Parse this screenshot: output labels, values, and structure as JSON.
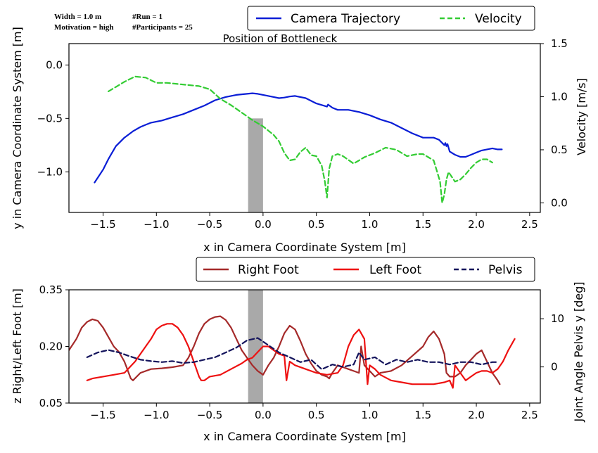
{
  "info": {
    "line1_left": "Width = 1.0 m",
    "line1_right": "#Run = 1",
    "line2_left": "Motivation = high",
    "line2_right": "#Participants = 25"
  },
  "colors": {
    "camera": "#0a1ed6",
    "velocity": "#33cc33",
    "right_foot": "#a52a2a",
    "left_foot": "#ee1111",
    "pelvis": "#14145c",
    "bottleneck": "#a9a9a9"
  },
  "chart_data": [
    {
      "type": "line",
      "title": "Position of Bottleneck",
      "xlabel": "x in Camera Coordinate System [m]",
      "ylabel": "y in Camera Coordinate System [m]",
      "y2label": "Velocity [m/s]",
      "xlim": [
        -1.82,
        2.6
      ],
      "ylim": [
        -1.38,
        0.2
      ],
      "y2lim": [
        -0.09,
        1.5
      ],
      "xticks": [
        "−1.5",
        "−1.0",
        "−0.5",
        "0.0",
        "0.5",
        "1.0",
        "1.5",
        "2.0",
        "2.5"
      ],
      "xtick_values": [
        -1.5,
        -1.0,
        -0.5,
        0.0,
        0.5,
        1.0,
        1.5,
        2.0,
        2.5
      ],
      "yticks": [
        "0.0",
        "−0.5",
        "−1.0"
      ],
      "ytick_values": [
        0.0,
        -0.5,
        -1.0
      ],
      "y2ticks": [
        "1.5",
        "1.0",
        "0.5",
        "0.0"
      ],
      "y2tick_values": [
        1.5,
        1.0,
        0.5,
        0.0
      ],
      "bottleneck": {
        "x0": -0.14,
        "x1": 0.0,
        "top": -0.5
      },
      "legend": "top-right",
      "series": [
        {
          "name": "Camera Trajectory",
          "axis": "left",
          "style": "solid",
          "x": [
            -1.58,
            -1.5,
            -1.45,
            -1.38,
            -1.3,
            -1.22,
            -1.15,
            -1.1,
            -1.05,
            -0.95,
            -0.85,
            -0.75,
            -0.65,
            -0.55,
            -0.45,
            -0.35,
            -0.25,
            -0.15,
            -0.1,
            -0.05,
            0.0,
            0.05,
            0.1,
            0.15,
            0.2,
            0.25,
            0.3,
            0.4,
            0.5,
            0.6,
            0.61,
            0.65,
            0.7,
            0.8,
            0.9,
            1.0,
            1.1,
            1.2,
            1.3,
            1.4,
            1.5,
            1.6,
            1.65,
            1.7,
            1.71,
            1.72,
            1.73,
            1.75,
            1.8,
            1.85,
            1.9,
            1.95,
            2.0,
            2.05,
            2.1,
            2.15,
            2.2,
            2.24
          ],
          "y": [
            -1.1,
            -0.98,
            -0.88,
            -0.76,
            -0.68,
            -0.62,
            -0.58,
            -0.56,
            -0.54,
            -0.52,
            -0.49,
            -0.46,
            -0.42,
            -0.38,
            -0.33,
            -0.3,
            -0.28,
            -0.27,
            -0.265,
            -0.27,
            -0.28,
            -0.29,
            -0.3,
            -0.31,
            -0.305,
            -0.295,
            -0.29,
            -0.31,
            -0.36,
            -0.39,
            -0.37,
            -0.4,
            -0.42,
            -0.42,
            -0.44,
            -0.47,
            -0.51,
            -0.54,
            -0.59,
            -0.64,
            -0.68,
            -0.68,
            -0.7,
            -0.75,
            -0.73,
            -0.76,
            -0.74,
            -0.81,
            -0.84,
            -0.86,
            -0.86,
            -0.84,
            -0.82,
            -0.8,
            -0.79,
            -0.78,
            -0.79,
            -0.79
          ]
        },
        {
          "name": "Velocity",
          "axis": "right",
          "style": "dashed",
          "x": [
            -1.45,
            -1.4,
            -1.3,
            -1.2,
            -1.1,
            -1.0,
            -0.9,
            -0.8,
            -0.7,
            -0.6,
            -0.5,
            -0.4,
            -0.3,
            -0.2,
            -0.1,
            0.0,
            0.1,
            0.15,
            0.2,
            0.25,
            0.3,
            0.35,
            0.4,
            0.45,
            0.5,
            0.55,
            0.58,
            0.6,
            0.62,
            0.65,
            0.7,
            0.75,
            0.85,
            0.95,
            1.05,
            1.15,
            1.25,
            1.35,
            1.45,
            1.5,
            1.55,
            1.6,
            1.63,
            1.66,
            1.68,
            1.7,
            1.72,
            1.74,
            1.8,
            1.85,
            1.9,
            1.95,
            2.0,
            2.05,
            2.1,
            2.15
          ],
          "y": [
            1.05,
            1.08,
            1.14,
            1.19,
            1.18,
            1.13,
            1.13,
            1.12,
            1.11,
            1.1,
            1.07,
            0.98,
            0.92,
            0.85,
            0.78,
            0.72,
            0.64,
            0.58,
            0.47,
            0.4,
            0.41,
            0.48,
            0.52,
            0.45,
            0.44,
            0.35,
            0.2,
            0.05,
            0.32,
            0.44,
            0.46,
            0.44,
            0.37,
            0.43,
            0.47,
            0.52,
            0.5,
            0.44,
            0.46,
            0.46,
            0.43,
            0.4,
            0.3,
            0.2,
            0.0,
            0.08,
            0.22,
            0.29,
            0.2,
            0.22,
            0.27,
            0.33,
            0.38,
            0.41,
            0.41,
            0.38
          ]
        }
      ]
    },
    {
      "type": "line",
      "xlabel": "x in Camera Coordinate System [m]",
      "ylabel": "z Right/Left Foot [m]",
      "y2label": "Joint Angle Pelvis y [deg]",
      "xlim": [
        -1.82,
        2.6
      ],
      "ylim": [
        0.05,
        0.35
      ],
      "y2lim": [
        -7.5,
        16.0
      ],
      "xticks": [
        "−1.5",
        "−1.0",
        "−0.5",
        "0.0",
        "0.5",
        "1.0",
        "1.5",
        "2.0",
        "2.5"
      ],
      "xtick_values": [
        -1.5,
        -1.0,
        -0.5,
        0.0,
        0.5,
        1.0,
        1.5,
        2.0,
        2.5
      ],
      "yticks": [
        "0.35",
        "0.20",
        "0.05"
      ],
      "ytick_values": [
        0.35,
        0.2,
        0.05
      ],
      "y2ticks": [
        "10",
        "0"
      ],
      "y2tick_values": [
        10,
        0
      ],
      "bottleneck": {
        "x0": -0.14,
        "x1": 0.0,
        "top": 0.35
      },
      "legend": "top-right",
      "series": [
        {
          "name": "Right Foot",
          "axis": "left",
          "style": "solid",
          "x": [
            -1.82,
            -1.75,
            -1.7,
            -1.65,
            -1.6,
            -1.55,
            -1.5,
            -1.45,
            -1.4,
            -1.35,
            -1.3,
            -1.28,
            -1.26,
            -1.24,
            -1.22,
            -1.15,
            -1.05,
            -0.95,
            -0.85,
            -0.75,
            -0.7,
            -0.65,
            -0.6,
            -0.55,
            -0.5,
            -0.45,
            -0.4,
            -0.35,
            -0.3,
            -0.25,
            -0.2,
            -0.15,
            -0.1,
            -0.05,
            0.0,
            0.05,
            0.1,
            0.15,
            0.2,
            0.25,
            0.3,
            0.35,
            0.4,
            0.45,
            0.5,
            0.55,
            0.6,
            0.62,
            0.65,
            0.7,
            0.75,
            0.8,
            0.85,
            0.9,
            0.92,
            0.95,
            1.0,
            1.05,
            1.1,
            1.2,
            1.3,
            1.4,
            1.5,
            1.55,
            1.6,
            1.65,
            1.7,
            1.72,
            1.75,
            1.8,
            1.85,
            1.9,
            1.95,
            2.0,
            2.05,
            2.1,
            2.15,
            2.2,
            2.22
          ],
          "y": [
            0.19,
            0.22,
            0.25,
            0.265,
            0.272,
            0.268,
            0.25,
            0.225,
            0.2,
            0.185,
            0.16,
            0.145,
            0.13,
            0.115,
            0.11,
            0.13,
            0.14,
            0.142,
            0.145,
            0.15,
            0.17,
            0.2,
            0.235,
            0.26,
            0.272,
            0.278,
            0.28,
            0.27,
            0.25,
            0.22,
            0.19,
            0.17,
            0.15,
            0.135,
            0.125,
            0.15,
            0.17,
            0.2,
            0.235,
            0.255,
            0.245,
            0.215,
            0.18,
            0.155,
            0.135,
            0.125,
            0.12,
            0.115,
            0.13,
            0.15,
            0.145,
            0.14,
            0.135,
            0.13,
            0.2,
            0.15,
            0.135,
            0.12,
            0.13,
            0.135,
            0.15,
            0.175,
            0.2,
            0.225,
            0.24,
            0.22,
            0.18,
            0.13,
            0.12,
            0.12,
            0.13,
            0.15,
            0.165,
            0.18,
            0.19,
            0.16,
            0.13,
            0.11,
            0.1
          ]
        },
        {
          "name": "Left Foot",
          "axis": "left",
          "style": "solid",
          "x": [
            -1.65,
            -1.6,
            -1.5,
            -1.4,
            -1.3,
            -1.2,
            -1.1,
            -1.05,
            -1.0,
            -0.95,
            -0.9,
            -0.85,
            -0.8,
            -0.75,
            -0.7,
            -0.65,
            -0.6,
            -0.58,
            -0.55,
            -0.5,
            -0.4,
            -0.3,
            -0.2,
            -0.15,
            -0.1,
            -0.05,
            0.0,
            0.05,
            0.1,
            0.15,
            0.2,
            0.22,
            0.25,
            0.3,
            0.4,
            0.5,
            0.6,
            0.7,
            0.75,
            0.8,
            0.85,
            0.9,
            0.95,
            0.98,
            1.0,
            1.05,
            1.1,
            1.2,
            1.3,
            1.4,
            1.5,
            1.6,
            1.7,
            1.75,
            1.78,
            1.8,
            1.85,
            1.9,
            1.95,
            2.0,
            2.05,
            2.1,
            2.15,
            2.2,
            2.25,
            2.3,
            2.36
          ],
          "y": [
            0.11,
            0.115,
            0.12,
            0.125,
            0.13,
            0.16,
            0.2,
            0.22,
            0.245,
            0.255,
            0.26,
            0.26,
            0.25,
            0.23,
            0.2,
            0.16,
            0.12,
            0.11,
            0.11,
            0.12,
            0.125,
            0.14,
            0.155,
            0.165,
            0.17,
            0.185,
            0.2,
            0.2,
            0.19,
            0.18,
            0.175,
            0.11,
            0.16,
            0.15,
            0.14,
            0.13,
            0.125,
            0.13,
            0.15,
            0.2,
            0.23,
            0.245,
            0.22,
            0.1,
            0.15,
            0.14,
            0.125,
            0.11,
            0.105,
            0.1,
            0.1,
            0.1,
            0.105,
            0.11,
            0.09,
            0.15,
            0.13,
            0.11,
            0.12,
            0.13,
            0.135,
            0.135,
            0.13,
            0.14,
            0.16,
            0.19,
            0.22
          ]
        },
        {
          "name": "Pelvis",
          "axis": "right",
          "style": "dashed",
          "x": [
            -1.65,
            -1.55,
            -1.45,
            -1.35,
            -1.25,
            -1.15,
            -1.05,
            -0.95,
            -0.85,
            -0.75,
            -0.65,
            -0.55,
            -0.45,
            -0.35,
            -0.25,
            -0.15,
            -0.05,
            0.05,
            0.15,
            0.25,
            0.35,
            0.45,
            0.55,
            0.65,
            0.75,
            0.85,
            0.9,
            0.95,
            1.05,
            1.15,
            1.25,
            1.35,
            1.45,
            1.55,
            1.65,
            1.75,
            1.85,
            1.95,
            2.05,
            2.15,
            2.2
          ],
          "y": [
            2.0,
            3.0,
            3.5,
            3.0,
            2.2,
            1.5,
            1.2,
            1.0,
            1.2,
            0.8,
            1.0,
            1.5,
            2.0,
            3.0,
            4.0,
            5.5,
            6.0,
            4.5,
            3.0,
            2.0,
            1.0,
            1.5,
            -0.5,
            0.5,
            0.0,
            0.5,
            3.0,
            1.5,
            2.0,
            0.5,
            1.5,
            1.0,
            1.5,
            1.0,
            1.0,
            0.5,
            1.0,
            1.0,
            0.5,
            1.0,
            1.0
          ]
        }
      ]
    }
  ]
}
